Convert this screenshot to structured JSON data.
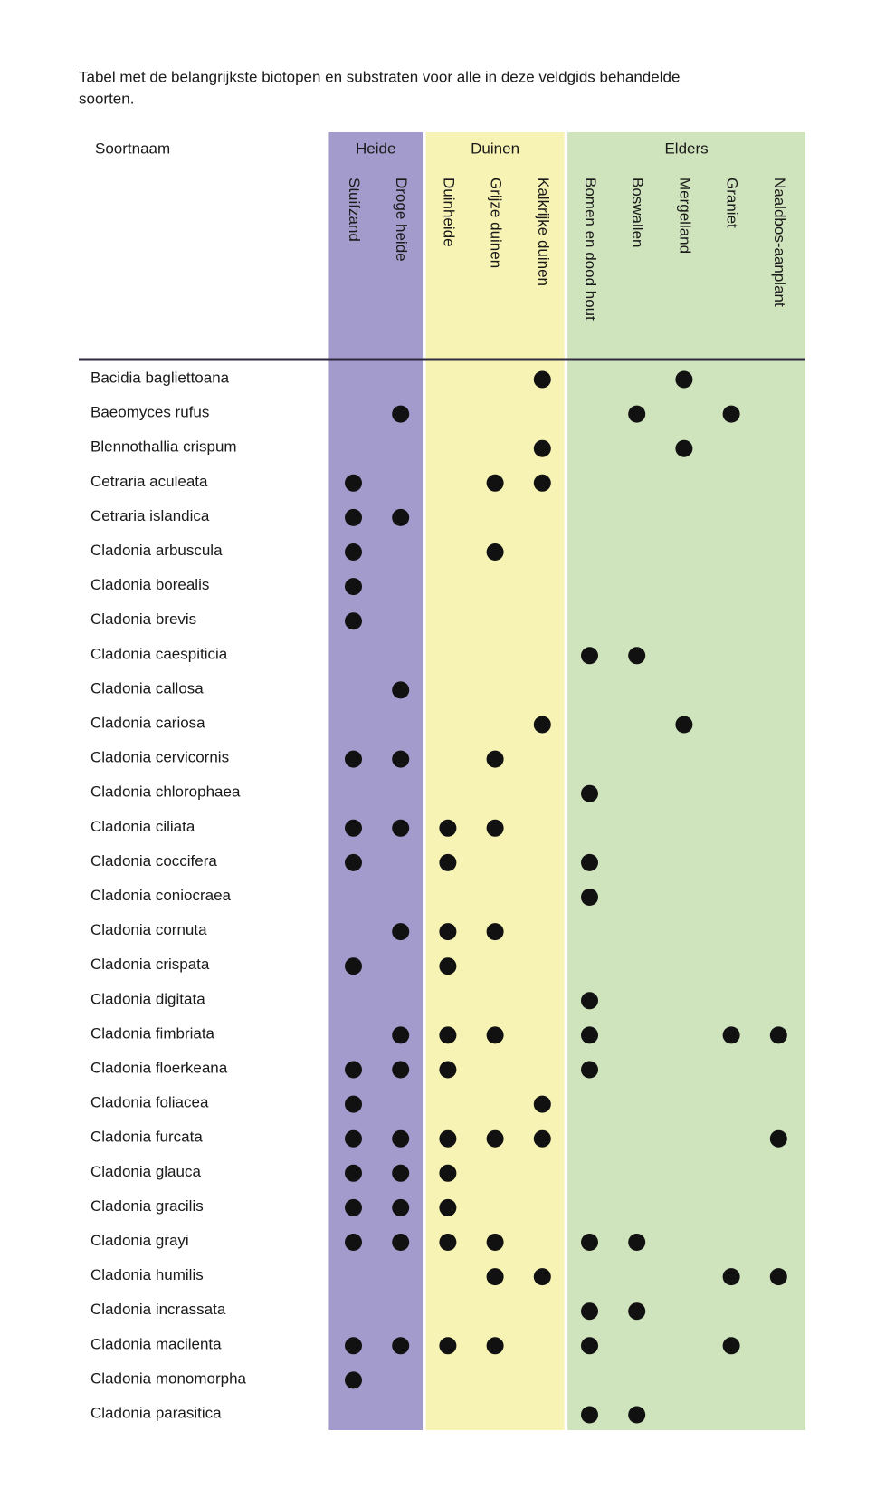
{
  "header": {
    "title_lines": [
      "Tabel met de belangrijkste biotopen en substraten voor alle in deze veldgids behandelde",
      "soorten."
    ],
    "name_column": "Soortnaam"
  },
  "groups": [
    {
      "label": "Heide",
      "columns": [
        "Stuifzand",
        "Droge heide"
      ]
    },
    {
      "label": "Duinen",
      "columns": [
        "Duinheide",
        "Grijze duinen",
        "Kalkrijke duinen"
      ]
    },
    {
      "label": "Elders",
      "columns": [
        "Bomen en dood hout",
        "Boswallen",
        "Mergelland",
        "Graniet",
        "Naaldbos-aanplant"
      ]
    }
  ],
  "rows": [
    {
      "name": "Bacidia bagliettoana",
      "marks": [
        false,
        false,
        false,
        false,
        true,
        false,
        false,
        true,
        false,
        false
      ]
    },
    {
      "name": "Baeomyces rufus",
      "marks": [
        false,
        true,
        false,
        false,
        false,
        false,
        true,
        false,
        true,
        false
      ]
    },
    {
      "name": "Blennothallia crispum",
      "marks": [
        false,
        false,
        false,
        false,
        true,
        false,
        false,
        true,
        false,
        false
      ]
    },
    {
      "name": "Cetraria aculeata",
      "marks": [
        true,
        false,
        false,
        true,
        true,
        false,
        false,
        false,
        false,
        false
      ]
    },
    {
      "name": "Cetraria islandica",
      "marks": [
        true,
        true,
        false,
        false,
        false,
        false,
        false,
        false,
        false,
        false
      ]
    },
    {
      "name": "Cladonia arbuscula",
      "marks": [
        true,
        false,
        false,
        true,
        false,
        false,
        false,
        false,
        false,
        false
      ]
    },
    {
      "name": "Cladonia borealis",
      "marks": [
        true,
        false,
        false,
        false,
        false,
        false,
        false,
        false,
        false,
        false
      ]
    },
    {
      "name": "Cladonia brevis",
      "marks": [
        true,
        false,
        false,
        false,
        false,
        false,
        false,
        false,
        false,
        false
      ]
    },
    {
      "name": "Cladonia caespiticia",
      "marks": [
        false,
        false,
        false,
        false,
        false,
        true,
        true,
        false,
        false,
        false
      ]
    },
    {
      "name": "Cladonia callosa",
      "marks": [
        false,
        true,
        false,
        false,
        false,
        false,
        false,
        false,
        false,
        false
      ]
    },
    {
      "name": "Cladonia cariosa",
      "marks": [
        false,
        false,
        false,
        false,
        true,
        false,
        false,
        true,
        false,
        false
      ]
    },
    {
      "name": "Cladonia cervicornis",
      "marks": [
        true,
        true,
        false,
        true,
        false,
        false,
        false,
        false,
        false,
        false
      ]
    },
    {
      "name": "Cladonia chlorophaea",
      "marks": [
        false,
        false,
        false,
        false,
        false,
        true,
        false,
        false,
        false,
        false
      ]
    },
    {
      "name": "Cladonia ciliata",
      "marks": [
        true,
        true,
        true,
        true,
        false,
        false,
        false,
        false,
        false,
        false
      ]
    },
    {
      "name": "Cladonia coccifera",
      "marks": [
        true,
        false,
        true,
        false,
        false,
        true,
        false,
        false,
        false,
        false
      ]
    },
    {
      "name": "Cladonia coniocraea",
      "marks": [
        false,
        false,
        false,
        false,
        false,
        true,
        false,
        false,
        false,
        false
      ]
    },
    {
      "name": "Cladonia cornuta",
      "marks": [
        false,
        true,
        true,
        true,
        false,
        false,
        false,
        false,
        false,
        false
      ]
    },
    {
      "name": "Cladonia crispata",
      "marks": [
        true,
        false,
        true,
        false,
        false,
        false,
        false,
        false,
        false,
        false
      ]
    },
    {
      "name": "Cladonia digitata",
      "marks": [
        false,
        false,
        false,
        false,
        false,
        true,
        false,
        false,
        false,
        false
      ]
    },
    {
      "name": "Cladonia fimbriata",
      "marks": [
        false,
        true,
        true,
        true,
        false,
        true,
        false,
        false,
        true,
        true
      ]
    },
    {
      "name": "Cladonia floerkeana",
      "marks": [
        true,
        true,
        true,
        false,
        false,
        true,
        false,
        false,
        false,
        false
      ]
    },
    {
      "name": "Cladonia foliacea",
      "marks": [
        true,
        false,
        false,
        false,
        true,
        false,
        false,
        false,
        false,
        false
      ]
    },
    {
      "name": "Cladonia furcata",
      "marks": [
        true,
        true,
        true,
        true,
        true,
        false,
        false,
        false,
        false,
        true
      ]
    },
    {
      "name": "Cladonia glauca",
      "marks": [
        true,
        true,
        true,
        false,
        false,
        false,
        false,
        false,
        false,
        false
      ]
    },
    {
      "name": "Cladonia gracilis",
      "marks": [
        true,
        true,
        true,
        false,
        false,
        false,
        false,
        false,
        false,
        false
      ]
    },
    {
      "name": "Cladonia grayi",
      "marks": [
        true,
        true,
        true,
        true,
        false,
        true,
        true,
        false,
        false,
        false
      ]
    },
    {
      "name": "Cladonia humilis",
      "marks": [
        false,
        false,
        false,
        true,
        true,
        false,
        false,
        false,
        true,
        true
      ]
    },
    {
      "name": "Cladonia incrassata",
      "marks": [
        false,
        false,
        false,
        false,
        false,
        true,
        true,
        false,
        false,
        false
      ]
    },
    {
      "name": "Cladonia macilenta",
      "marks": [
        true,
        true,
        true,
        true,
        false,
        true,
        false,
        false,
        true,
        false
      ]
    },
    {
      "name": "Cladonia monomorpha",
      "marks": [
        true,
        false,
        false,
        false,
        false,
        false,
        false,
        false,
        false,
        false
      ]
    },
    {
      "name": "Cladonia parasitica",
      "marks": [
        false,
        false,
        false,
        false,
        false,
        true,
        true,
        false,
        false,
        false
      ]
    }
  ]
}
